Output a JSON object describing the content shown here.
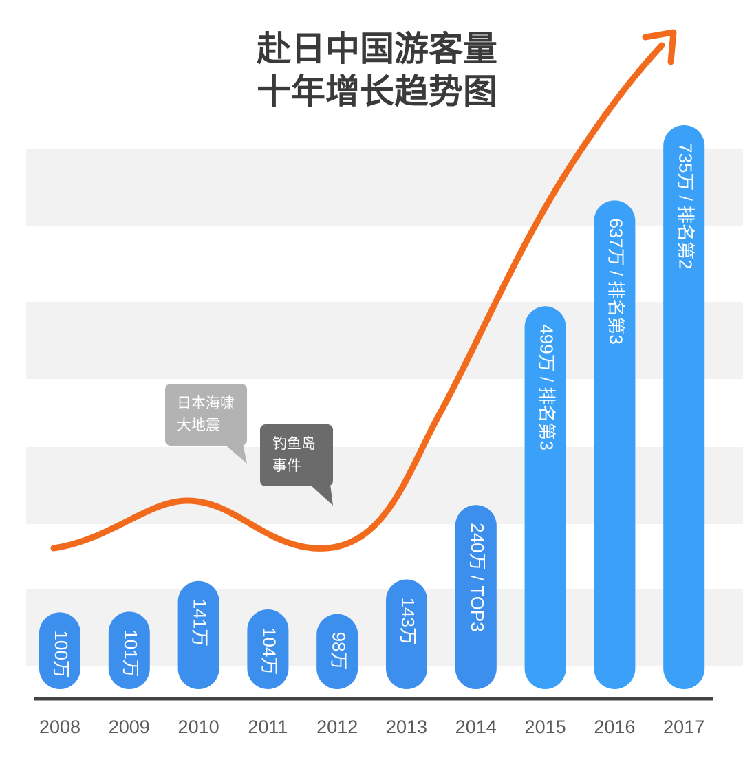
{
  "chart_data": {
    "type": "bar",
    "title": [
      "赴日中国游客量",
      "十年增长趋势图"
    ],
    "categories": [
      "2008",
      "2009",
      "2010",
      "2011",
      "2012",
      "2013",
      "2014",
      "2015",
      "2016",
      "2017"
    ],
    "values": [
      100,
      101,
      141,
      104,
      98,
      143,
      240,
      499,
      637,
      735
    ],
    "unit": "万",
    "data_labels": [
      "100万",
      "101万",
      "141万",
      "104万",
      "98万",
      "143万",
      "240万 / TOP3",
      "499万 / 排名第3",
      "637万 / 排名第3",
      "735万 / 排名第2"
    ],
    "ylim": [
      0,
      800
    ],
    "grid": "alternating horizontal bands",
    "trend_line": "orange arrow curve following the values",
    "annotations": [
      {
        "lines": [
          "日本海啸",
          "大地震"
        ],
        "year": "2011"
      },
      {
        "lines": [
          "钓鱼岛",
          "事件"
        ],
        "year": "2012"
      }
    ],
    "colors": {
      "bar": "#3d8fee",
      "bar_light": "#3aa0f8",
      "trend": "#f26b1d",
      "band": "#f2f2f2",
      "axis": "#444444",
      "callout_1": "#b3b3b3",
      "callout_2": "#6b6b6b",
      "title": "#3a3a3a"
    }
  }
}
